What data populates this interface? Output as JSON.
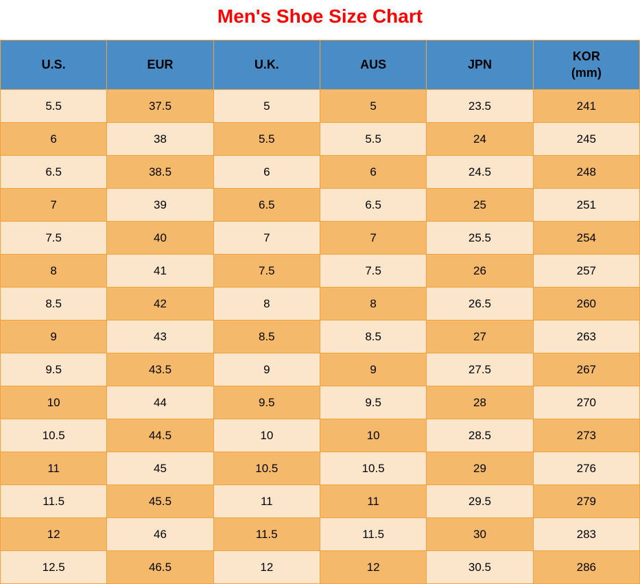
{
  "title": {
    "text": "Men's Shoe Size Chart",
    "color": "#ff0000",
    "fontsize": 28
  },
  "table": {
    "type": "table",
    "header_bg": "#4a8dc6",
    "row_light_bg": "#fbe5cb",
    "row_dark_bg": "#f4b96a",
    "border_color": "#f2a23c",
    "columns": [
      "U.S.",
      "EUR",
      "U.K.",
      "AUS",
      "JPN",
      "KOR\n(mm)"
    ],
    "rows": [
      [
        "5.5",
        "37.5",
        "5",
        "5",
        "23.5",
        "241"
      ],
      [
        "6",
        "38",
        "5.5",
        "5.5",
        "24",
        "245"
      ],
      [
        "6.5",
        "38.5",
        "6",
        "6",
        "24.5",
        "248"
      ],
      [
        "7",
        "39",
        "6.5",
        "6.5",
        "25",
        "251"
      ],
      [
        "7.5",
        "40",
        "7",
        "7",
        "25.5",
        "254"
      ],
      [
        "8",
        "41",
        "7.5",
        "7.5",
        "26",
        "257"
      ],
      [
        "8.5",
        "42",
        "8",
        "8",
        "26.5",
        "260"
      ],
      [
        "9",
        "43",
        "8.5",
        "8.5",
        "27",
        "263"
      ],
      [
        "9.5",
        "43.5",
        "9",
        "9",
        "27.5",
        "267"
      ],
      [
        "10",
        "44",
        "9.5",
        "9.5",
        "28",
        "270"
      ],
      [
        "10.5",
        "44.5",
        "10",
        "10",
        "28.5",
        "273"
      ],
      [
        "11",
        "45",
        "10.5",
        "10.5",
        "29",
        "276"
      ],
      [
        "11.5",
        "45.5",
        "11",
        "11",
        "29.5",
        "279"
      ],
      [
        "12",
        "46",
        "11.5",
        "11.5",
        "30",
        "283"
      ],
      [
        "12.5",
        "46.5",
        "12",
        "12",
        "30.5",
        "286"
      ]
    ]
  }
}
